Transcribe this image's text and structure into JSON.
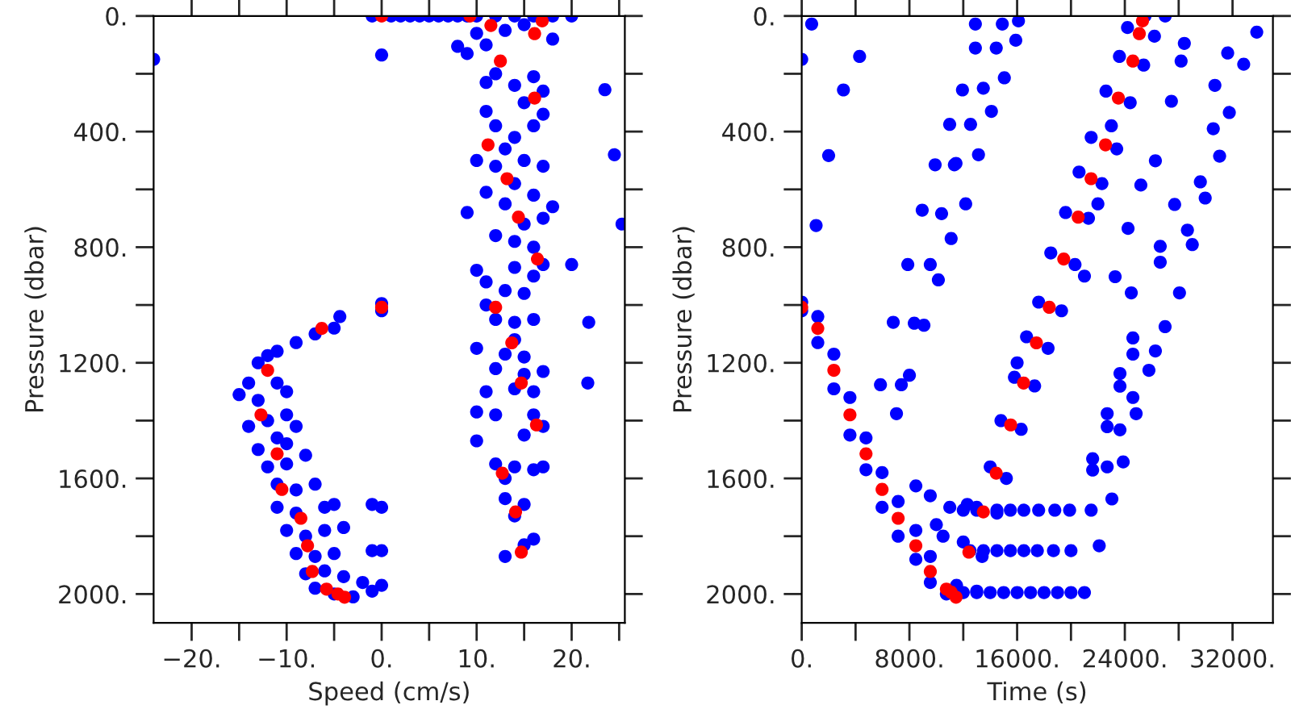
{
  "chart_data": [
    {
      "type": "scatter",
      "xlabel": "Speed (cm/s)",
      "ylabel": "Pressure (dbar)",
      "marker": "circle",
      "xlim": [
        -24,
        25.6
      ],
      "ylim": [
        2100,
        0
      ],
      "xticks": [
        {
          "value": -20,
          "label": "−20."
        },
        {
          "value": -15,
          "label": null
        },
        {
          "value": -10,
          "label": "−10."
        },
        {
          "value": -5,
          "label": null
        },
        {
          "value": 0,
          "label": "0."
        },
        {
          "value": 5,
          "label": null
        },
        {
          "value": 10,
          "label": "10."
        },
        {
          "value": 15,
          "label": null
        },
        {
          "value": 20,
          "label": "20."
        },
        {
          "value": 25,
          "label": null
        }
      ],
      "yticks": [
        {
          "value": 0,
          "label": "0."
        },
        {
          "value": 200,
          "label": null
        },
        {
          "value": 400,
          "label": "400."
        },
        {
          "value": 600,
          "label": null
        },
        {
          "value": 800,
          "label": "800."
        },
        {
          "value": 1000,
          "label": null
        },
        {
          "value": 1200,
          "label": "1200."
        },
        {
          "value": 1400,
          "label": null
        },
        {
          "value": 1600,
          "label": "1600."
        },
        {
          "value": 1800,
          "label": null
        },
        {
          "value": 2000,
          "label": "2000."
        }
      ],
      "series": [
        {
          "color": "#0000ff",
          "x": [
            -1,
            1,
            2,
            3,
            4,
            5,
            6,
            7,
            8,
            9,
            10,
            12,
            14,
            16,
            18,
            20,
            -24,
            0,
            0,
            0,
            23.5,
            24.5,
            25.3,
            20,
            21.8,
            21.7,
            8,
            9,
            10,
            11,
            13,
            15,
            18,
            12,
            11,
            14,
            16,
            17,
            15,
            11,
            12,
            14,
            16,
            17,
            13,
            10,
            12,
            15,
            17,
            14,
            11,
            16,
            13,
            9,
            15,
            17,
            18,
            12,
            14,
            16,
            17,
            14,
            10,
            11,
            13,
            15,
            16,
            12,
            14,
            11,
            16,
            14,
            13,
            15,
            10,
            12,
            15,
            17,
            14,
            16,
            11,
            10,
            12,
            16,
            17,
            15,
            10,
            12,
            13,
            14,
            16,
            17,
            13,
            14,
            15,
            13,
            15,
            16,
            -4.4,
            -5,
            -7,
            -9,
            -11,
            -13,
            -12,
            -14,
            -15,
            -13,
            -11,
            -10,
            -12,
            -14,
            -10,
            -9,
            -13,
            -11,
            -10,
            -8,
            -12,
            -11,
            -9,
            -7,
            -11,
            -9,
            -6,
            -5,
            -1,
            0,
            -10,
            -8,
            -6,
            -4,
            -9,
            -7,
            -5,
            -1,
            0,
            -8,
            -6,
            -4,
            -2,
            0,
            -7,
            -5,
            -3,
            -1,
            -10
          ],
          "values": [
            0,
            0,
            0,
            0,
            0,
            0,
            0,
            0,
            0,
            0,
            0,
            0,
            0,
            0,
            0,
            0,
            150,
            135,
            995,
            1020,
            255,
            480,
            720,
            860,
            1060,
            1270,
            105,
            130,
            60,
            100,
            50,
            30,
            80,
            200,
            230,
            240,
            210,
            260,
            300,
            330,
            380,
            420,
            380,
            340,
            460,
            500,
            520,
            500,
            520,
            580,
            610,
            620,
            650,
            680,
            720,
            700,
            660,
            760,
            780,
            800,
            860,
            870,
            880,
            920,
            950,
            960,
            900,
            1050,
            1060,
            1000,
            1050,
            1120,
            1170,
            1180,
            1150,
            1220,
            1240,
            1230,
            1290,
            1300,
            1300,
            1370,
            1380,
            1380,
            1420,
            1450,
            1470,
            1550,
            1600,
            1560,
            1570,
            1560,
            1670,
            1730,
            1690,
            1870,
            1830,
            1810,
            1040,
            1080,
            1100,
            1130,
            1160,
            1200,
            1175,
            1270,
            1310,
            1330,
            1270,
            1300,
            1400,
            1420,
            1380,
            1420,
            1500,
            1460,
            1550,
            1520,
            1560,
            1620,
            1640,
            1620,
            1700,
            1720,
            1700,
            1690,
            1690,
            1700,
            1780,
            1800,
            1780,
            1770,
            1860,
            1870,
            1860,
            1850,
            1850,
            1930,
            1920,
            1940,
            1960,
            1970,
            1980,
            2000,
            2010,
            1990,
            1480
          ]
        },
        {
          "color": "#ff0000",
          "x": [
            0,
            -6.3,
            -12.0,
            -12.7,
            -11.0,
            -10.5,
            -8.5,
            -7.8,
            -7.3,
            -5.8,
            -4.6,
            -3.9,
            0,
            9.3,
            11.5,
            16.9,
            16.1,
            12.5,
            16.1,
            11.2,
            13.2,
            14.4,
            16.4,
            12.0,
            13.7,
            14.7,
            16.3,
            12.7,
            14.1,
            14.7
          ],
          "values": [
            0,
            1081,
            1226,
            1380,
            1515,
            1638,
            1738,
            1833,
            1922,
            1983,
            2000,
            2011,
            1008,
            0,
            33,
            17,
            61,
            156,
            284,
            446,
            563,
            696,
            841,
            1008,
            1131,
            1270,
            1415,
            1582,
            1716,
            1855
          ]
        }
      ]
    },
    {
      "type": "scatter",
      "xlabel": "Time (s)",
      "ylabel": "Pressure (dbar)",
      "marker": "circle",
      "xlim": [
        0,
        35000
      ],
      "ylim": [
        2100,
        0
      ],
      "xticks": [
        {
          "value": 0,
          "label": "0."
        },
        {
          "value": 4000,
          "label": null
        },
        {
          "value": 8000,
          "label": "8000."
        },
        {
          "value": 12000,
          "label": null
        },
        {
          "value": 16000,
          "label": "16000."
        },
        {
          "value": 20000,
          "label": null
        },
        {
          "value": 24000,
          "label": "24000."
        },
        {
          "value": 28000,
          "label": null
        },
        {
          "value": 32000,
          "label": "32000."
        }
      ],
      "yticks": [
        {
          "value": 0,
          "label": "0."
        },
        {
          "value": 200,
          "label": null
        },
        {
          "value": 400,
          "label": "400."
        },
        {
          "value": 600,
          "label": null
        },
        {
          "value": 800,
          "label": "800."
        },
        {
          "value": 1000,
          "label": null
        },
        {
          "value": 1200,
          "label": "1200."
        },
        {
          "value": 1400,
          "label": null
        },
        {
          "value": 1600,
          "label": "1600."
        },
        {
          "value": 1800,
          "label": null
        },
        {
          "value": 2000,
          "label": "2000."
        }
      ],
      "series": [
        {
          "color": "#0000ff",
          "x": [
            0,
            0,
            1194,
            1194,
            2388,
            2388,
            3582,
            3582,
            4776,
            4776,
            5970,
            5970,
            7164,
            7164,
            8478,
            8478,
            9552,
            9552,
            10746,
            0,
            740,
            4300,
            3100,
            2000,
            1070,
            7880,
            9550,
            10150,
            8950,
            10390,
            11100,
            9910,
            11340,
            10990,
            11940,
            6800,
            8360,
            9080,
            5850,
            7400,
            8000,
            7040,
            12900,
            14900,
            16100,
            12900,
            14450,
            15900,
            15050,
            13490,
            14090,
            12540,
            13130,
            11460,
            12180,
            28180,
            30690,
            33800,
            32830,
            31760,
            31040,
            29610,
            29970,
            28650,
            29010,
            27700,
            26630,
            26630,
            28060,
            26990,
            26270,
            25790,
            24600,
            24600,
            23640,
            23640,
            24600,
            24840,
            22690,
            22690,
            23640,
            23880,
            23040,
            21610,
            21610,
            22690,
            24480,
            23280,
            24240,
            25190,
            26270,
            27460,
            28420,
            31640,
            30570,
            12000,
            13000,
            14500,
            15500,
            16500,
            17600,
            18800,
            19900,
            21500,
            12500,
            13500,
            14500,
            15500,
            16500,
            17500,
            18700,
            20000,
            22100,
            12000,
            13000,
            14000,
            15000,
            16000,
            17000,
            18000,
            19000,
            20000,
            21000,
            10000,
            11000,
            10500,
            12300,
            9550,
            8480,
            11500,
            13000,
            12000,
            13400,
            13000,
            14500,
            14000,
            15200,
            14800,
            16300,
            15800,
            17300,
            16700,
            18300,
            17600,
            19300,
            18500,
            20300,
            19600,
            21300,
            20600,
            22300,
            21500,
            23400,
            22600,
            24400,
            23600,
            25400,
            24200,
            26200,
            25500,
            27000,
            21000,
            16000,
            22000,
            23000
          ],
          "values": [
            990,
            1020,
            1040,
            1130,
            1170,
            1290,
            1320,
            1450,
            1460,
            1570,
            1580,
            1700,
            1680,
            1800,
            1780,
            1880,
            1870,
            1960,
            2000,
            150,
            28,
            140,
            256,
            483,
            725,
            860,
            860,
            913,
            672,
            684,
            770,
            515,
            515,
            375,
            256,
            1060,
            1063,
            1070,
            1276,
            1276,
            1243,
            1376,
            28,
            28,
            17,
            111,
            111,
            84,
            214,
            250,
            330,
            375,
            480,
            510,
            650,
            156,
            240,
            56,
            167,
            334,
            485,
            574,
            630,
            741,
            791,
            652,
            797,
            852,
            958,
            1075,
            1159,
            1226,
            1114,
            1170,
            1237,
            1281,
            1320,
            1376,
            1376,
            1421,
            1432,
            1543,
            1671,
            1532,
            1571,
            1560,
            958,
            902,
            735,
            585,
            501,
            295,
            95,
            128,
            390,
            1710,
            1710,
            1710,
            1710,
            1710,
            1710,
            1710,
            1710,
            1710,
            1850,
            1850,
            1850,
            1850,
            1850,
            1850,
            1850,
            1850,
            1833,
            1995,
            1995,
            1995,
            1995,
            1995,
            1995,
            1995,
            1995,
            1995,
            1995,
            1760,
            1700,
            1800,
            1690,
            1660,
            1626,
            1970,
            1990,
            1820,
            1870,
            1700,
            1720,
            1560,
            1600,
            1400,
            1430,
            1250,
            1280,
            1110,
            1150,
            990,
            1020,
            820,
            860,
            680,
            700,
            540,
            580,
            420,
            460,
            260,
            300,
            140,
            170,
            40,
            70,
            0,
            0,
            900,
            1200,
            650,
            380
          ]
        },
        {
          "color": "#ff0000",
          "x": [
            0,
            1194,
            2388,
            3582,
            4776,
            5970,
            7164,
            8478,
            9552,
            10746,
            11104,
            11463,
            12418,
            13493,
            14448,
            15522,
            16478,
            17433,
            18388,
            19463,
            20537,
            21493,
            22567,
            23522,
            24597,
            25075,
            25313
          ],
          "values": [
            1008,
            1081,
            1226,
            1380,
            1515,
            1638,
            1738,
            1833,
            1922,
            1983,
            1994,
            2011,
            1855,
            1716,
            1582,
            1415,
            1270,
            1131,
            1008,
            841,
            696,
            563,
            446,
            284,
            156,
            61,
            17
          ]
        }
      ]
    }
  ]
}
